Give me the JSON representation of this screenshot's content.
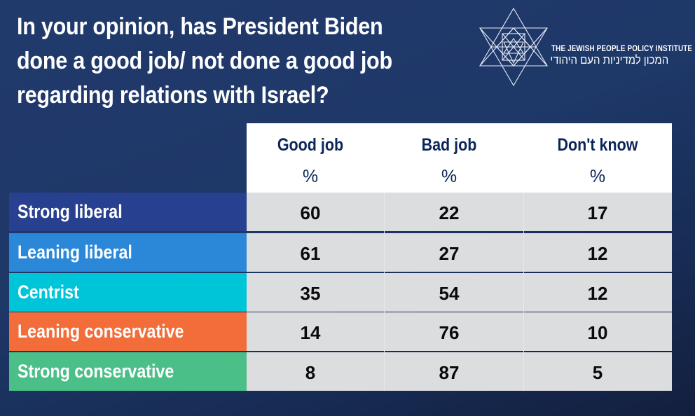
{
  "title": "In your opinion, has President Biden\ndone a good job/ not done a good job\nregarding relations with Israel?",
  "logo": {
    "icon": "star-of-david-geometric-icon",
    "english": "THE JEWISH PEOPLE POLICY INSTITUTE",
    "hebrew": "המכון למדיניות העם היהודי"
  },
  "colors": {
    "background": "#1e3868",
    "header_bg": "#ffffff",
    "header_text": "#0b2559",
    "cell_bg": "#dcdddf",
    "strong_liberal": "#27408f",
    "leaning_liberal": "#2b88d8",
    "centrist": "#00c4d8",
    "leaning_conservative": "#f26d3a",
    "strong_conservative": "#4abf87"
  },
  "chart_data": {
    "type": "table",
    "title": "In your opinion, has President Biden done a good job/ not done a good job regarding relations with Israel?",
    "columns": [
      {
        "label": "Good job",
        "unit": "%"
      },
      {
        "label": "Bad job",
        "unit": "%"
      },
      {
        "label": "Don't know",
        "unit": "%"
      }
    ],
    "rows": [
      {
        "label": "Strong liberal",
        "color": "#27408f",
        "values": [
          60,
          22,
          17
        ]
      },
      {
        "label": "Leaning liberal",
        "color": "#2b88d8",
        "values": [
          61,
          27,
          12
        ]
      },
      {
        "label": "Centrist",
        "color": "#00c4d8",
        "values": [
          35,
          54,
          12
        ]
      },
      {
        "label": "Leaning conservative",
        "color": "#f26d3a",
        "values": [
          14,
          76,
          10
        ]
      },
      {
        "label": "Strong conservative",
        "color": "#4abf87",
        "values": [
          8,
          87,
          5
        ]
      }
    ]
  }
}
